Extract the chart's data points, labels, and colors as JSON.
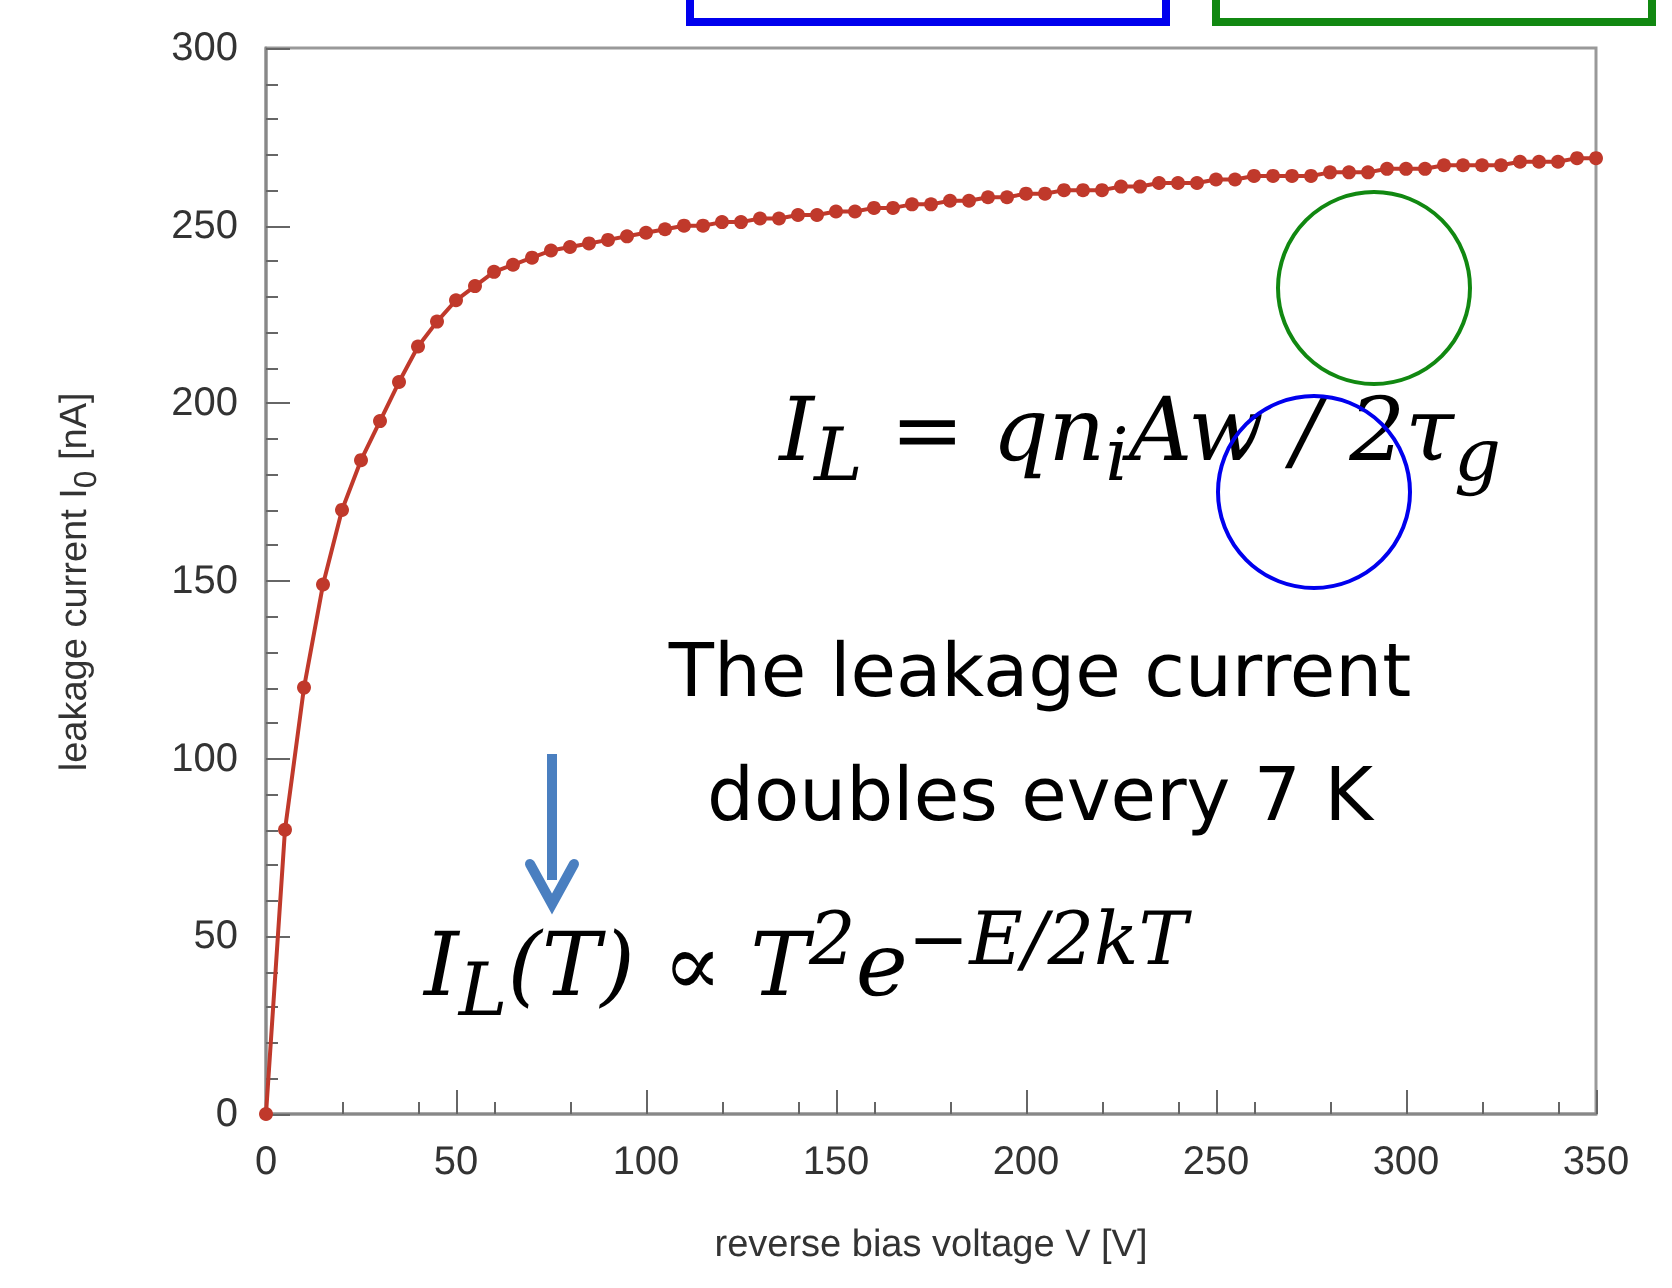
{
  "chart_data": {
    "type": "line",
    "xlabel": "reverse bias voltage V [V]",
    "ylabel": "leakage current I$_{0}$ [nA]",
    "xlim": [
      0,
      350
    ],
    "xticks": [
      0,
      50,
      100,
      150,
      200,
      250,
      300,
      350
    ],
    "ylim": [
      0,
      300
    ],
    "yticks": [
      0,
      50,
      100,
      150,
      200,
      250,
      300
    ],
    "marker": "circle",
    "line_style": "solid",
    "annotations": [
      "I$_{L}$ = qn$_{i}$Aw / 2τ$_{g}$",
      "The leakage current\ndoubles every 7 K",
      "I$_{L}$(T) ∝ T$^{2}$e$^{−E/2kT}$"
    ],
    "x": [
      0,
      5,
      10,
      15,
      20,
      25,
      30,
      35,
      40,
      45,
      50,
      55,
      60,
      65,
      70,
      75,
      80,
      85,
      90,
      95,
      100,
      105,
      110,
      115,
      120,
      125,
      130,
      135,
      140,
      145,
      150,
      155,
      160,
      165,
      170,
      175,
      180,
      185,
      190,
      195,
      200,
      205,
      210,
      215,
      220,
      225,
      230,
      235,
      240,
      245,
      250,
      255,
      260,
      265,
      270,
      275,
      280,
      285,
      290,
      295,
      300,
      305,
      310,
      315,
      320,
      325,
      330,
      335,
      340,
      345,
      350
    ],
    "series": [
      {
        "color": "#c0392b",
        "values": [
          0,
          80,
          120,
          149,
          170,
          184,
          195,
          206,
          216,
          223,
          229,
          233,
          237,
          239,
          241,
          243,
          244,
          245,
          246,
          247,
          248,
          249,
          250,
          250,
          251,
          251,
          252,
          252,
          253,
          253,
          254,
          254,
          255,
          255,
          256,
          256,
          257,
          257,
          258,
          258,
          259,
          259,
          260,
          260,
          260,
          261,
          261,
          262,
          262,
          262,
          263,
          263,
          264,
          264,
          264,
          264,
          265,
          265,
          265,
          266,
          266,
          266,
          267,
          267,
          267,
          267,
          268,
          268,
          268,
          269,
          269
        ]
      }
    ]
  }
}
